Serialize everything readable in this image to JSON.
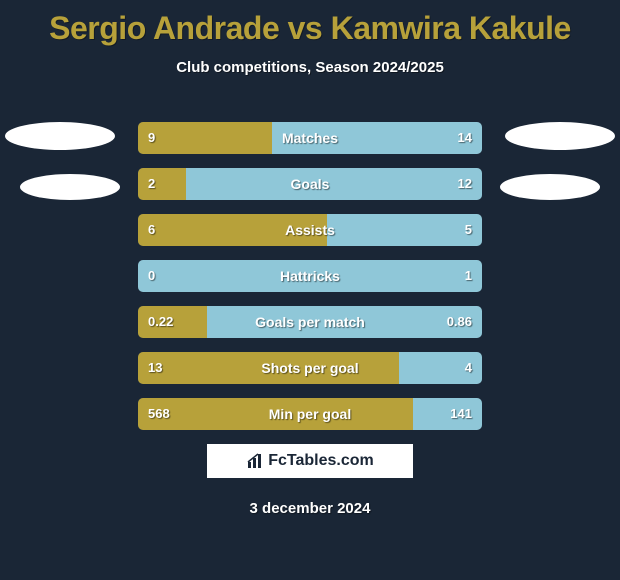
{
  "title": "Sergio Andrade vs Kamwira Kakule",
  "subtitle": "Club competitions, Season 2024/2025",
  "date": "3 december 2024",
  "brand": "FcTables.com",
  "colors": {
    "left_fill": "#b7a13a",
    "right_fill": "#8fc7d8",
    "row_bg": "#3c4a5a",
    "page_bg": "#1a2636"
  },
  "rows": [
    {
      "label": "Matches",
      "left_val": "9",
      "right_val": "14",
      "left_pct": 39,
      "right_pct": 61
    },
    {
      "label": "Goals",
      "left_val": "2",
      "right_val": "12",
      "left_pct": 14,
      "right_pct": 86
    },
    {
      "label": "Assists",
      "left_val": "6",
      "right_val": "5",
      "left_pct": 55,
      "right_pct": 45
    },
    {
      "label": "Hattricks",
      "left_val": "0",
      "right_val": "1",
      "left_pct": 0,
      "right_pct": 100
    },
    {
      "label": "Goals per match",
      "left_val": "0.22",
      "right_val": "0.86",
      "left_pct": 20,
      "right_pct": 80
    },
    {
      "label": "Shots per goal",
      "left_val": "13",
      "right_val": "4",
      "left_pct": 76,
      "right_pct": 24
    },
    {
      "label": "Min per goal",
      "left_val": "568",
      "right_val": "141",
      "left_pct": 80,
      "right_pct": 20
    }
  ]
}
